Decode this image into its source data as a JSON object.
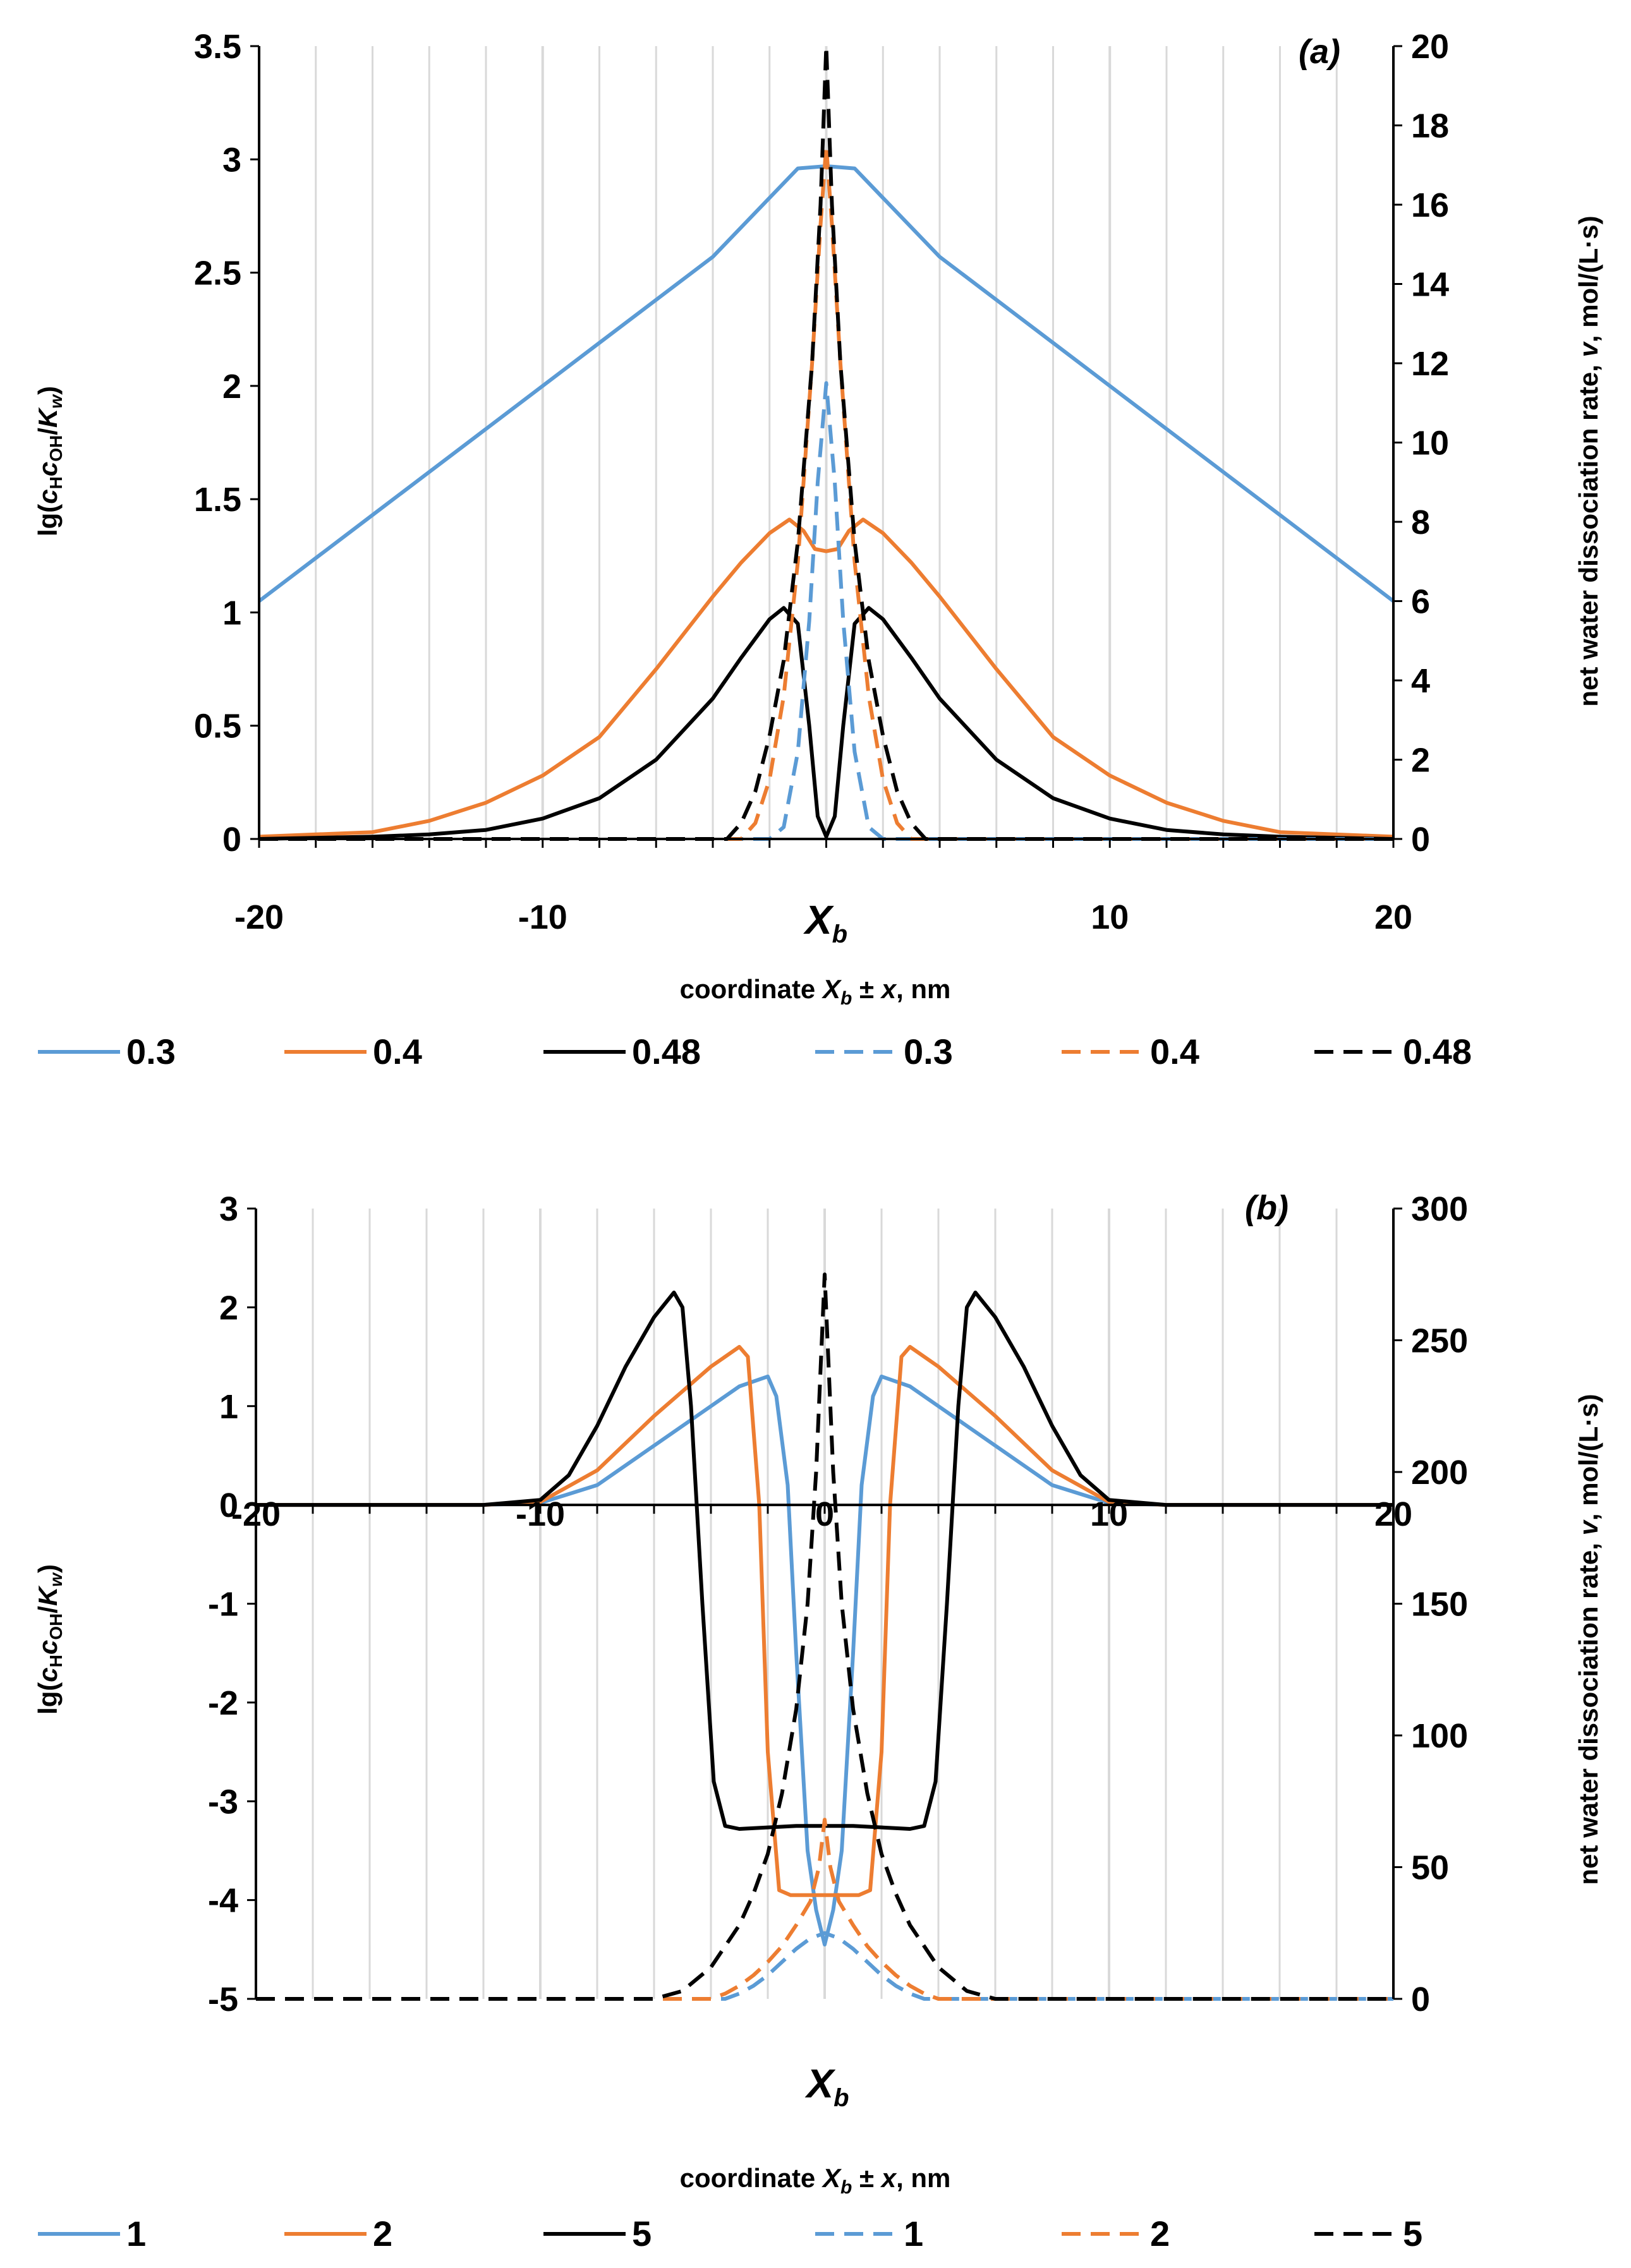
{
  "colors": {
    "s03": "#5B9BD5",
    "s04": "#ED7D31",
    "s048": "#000000",
    "grid": "#D9D9D9"
  },
  "chart_data": [
    {
      "panel": "(a)",
      "type": "line",
      "xlabel": "coordinate X_b ± x, nm",
      "ylabel": "lg(c_H c_OH/K_w)",
      "y2label": "net water dissociation rate, v, mol/(L·s)",
      "xlim": [
        -20,
        20
      ],
      "ylim": [
        0,
        3.5
      ],
      "y2lim": [
        0,
        20
      ],
      "xticks": [
        "-20",
        "-10",
        "X_b",
        "10",
        "20"
      ],
      "yticks": [
        "0",
        "0.5",
        "1",
        "1.5",
        "2",
        "2.5",
        "3",
        "3.5"
      ],
      "y2ticks": [
        "0",
        "2",
        "4",
        "6",
        "8",
        "10",
        "12",
        "14",
        "16",
        "18",
        "20"
      ],
      "legend": [
        "0.3",
        "0.4",
        "0.48",
        "0.3",
        "0.4",
        "0.48"
      ],
      "series": [
        {
          "name": "0.3",
          "axis": "left",
          "style": "solid",
          "color": "#5B9BD5",
          "x": [
            -20,
            -16,
            -12,
            -8,
            -4,
            -1,
            0,
            1,
            4,
            8,
            12,
            16,
            20
          ],
          "y": [
            1.05,
            1.43,
            1.81,
            2.19,
            2.57,
            2.96,
            2.97,
            2.96,
            2.57,
            2.19,
            1.81,
            1.43,
            1.05
          ]
        },
        {
          "name": "0.4",
          "axis": "left",
          "style": "solid",
          "color": "#ED7D31",
          "x": [
            -20,
            -16,
            -14,
            -12,
            -10,
            -8,
            -6,
            -4,
            -3,
            -2,
            -1.3,
            -0.8,
            -0.4,
            0,
            0.4,
            0.8,
            1.3,
            2,
            3,
            4,
            6,
            8,
            10,
            12,
            14,
            16,
            20
          ],
          "y": [
            0.01,
            0.03,
            0.08,
            0.16,
            0.28,
            0.45,
            0.75,
            1.07,
            1.22,
            1.35,
            1.41,
            1.36,
            1.28,
            1.27,
            1.28,
            1.36,
            1.41,
            1.35,
            1.22,
            1.07,
            0.75,
            0.45,
            0.28,
            0.16,
            0.08,
            0.03,
            0.01
          ]
        },
        {
          "name": "0.48",
          "axis": "left",
          "style": "solid",
          "color": "#000000",
          "x": [
            -20,
            -16,
            -14,
            -12,
            -10,
            -8,
            -6,
            -4,
            -3,
            -2,
            -1.5,
            -1,
            -0.6,
            -0.3,
            0,
            0.3,
            0.6,
            1,
            1.5,
            2,
            3,
            4,
            6,
            8,
            10,
            12,
            14,
            16,
            20
          ],
          "y": [
            0.0,
            0.01,
            0.02,
            0.04,
            0.09,
            0.18,
            0.35,
            0.62,
            0.8,
            0.97,
            1.02,
            0.95,
            0.5,
            0.1,
            0.01,
            0.1,
            0.5,
            0.95,
            1.02,
            0.97,
            0.8,
            0.62,
            0.35,
            0.18,
            0.09,
            0.04,
            0.02,
            0.01,
            0.0
          ]
        },
        {
          "name": "0.3",
          "axis": "right",
          "style": "dashed",
          "color": "#5B9BD5",
          "x": [
            -20,
            -2,
            -1.5,
            -1,
            -0.6,
            -0.3,
            0,
            0.3,
            0.6,
            1,
            1.5,
            2,
            20
          ],
          "y": [
            0,
            0,
            0.3,
            2.2,
            5.5,
            9.0,
            11.5,
            9.0,
            5.5,
            2.2,
            0.3,
            0,
            0
          ]
        },
        {
          "name": "0.4",
          "axis": "right",
          "style": "dashed",
          "color": "#ED7D31",
          "x": [
            -20,
            -3,
            -2.5,
            -2,
            -1.5,
            -1,
            -0.5,
            -0.2,
            0,
            0.2,
            0.5,
            1,
            1.5,
            2,
            2.5,
            3,
            20
          ],
          "y": [
            0,
            0,
            0.4,
            1.5,
            3.6,
            7.0,
            12.0,
            15.5,
            17.5,
            15.5,
            12.0,
            7.0,
            3.6,
            1.5,
            0.4,
            0,
            0
          ]
        },
        {
          "name": "0.48",
          "axis": "right",
          "style": "dashed",
          "color": "#000000",
          "x": [
            -20,
            -3.5,
            -3,
            -2.5,
            -2,
            -1.5,
            -1,
            -0.5,
            -0.2,
            0,
            0.2,
            0.5,
            1,
            1.5,
            2,
            2.5,
            3,
            3.5,
            20
          ],
          "y": [
            0,
            0,
            0.4,
            1.2,
            2.6,
            4.5,
            7.5,
            12.0,
            16.0,
            20.0,
            16.0,
            12.0,
            7.5,
            4.5,
            2.6,
            1.2,
            0.4,
            0,
            0
          ]
        }
      ]
    },
    {
      "panel": "(b)",
      "type": "line",
      "xlabel": "coordinate X_b ± x, nm",
      "ylabel": "lg(c_H c_OH/K_w)",
      "y2label": "net water dissociation rate, v, mol/(L·s)",
      "xlim": [
        -20,
        20
      ],
      "ylim": [
        -5,
        3
      ],
      "y2lim": [
        0,
        300
      ],
      "xticks": [
        "-20",
        "-10",
        "0",
        "10",
        "20"
      ],
      "xmark": "X_b",
      "yticks": [
        "-5",
        "-4",
        "-3",
        "-2",
        "-1",
        "0",
        "1",
        "2",
        "3"
      ],
      "y2ticks": [
        "0",
        "50",
        "100",
        "150",
        "200",
        "250",
        "300"
      ],
      "legend": [
        "1",
        "2",
        "5",
        "1",
        "2",
        "5"
      ],
      "series": [
        {
          "name": "1",
          "axis": "left",
          "style": "solid",
          "color": "#5B9BD5",
          "x": [
            -20,
            -12,
            -10,
            -8,
            -6,
            -4,
            -3,
            -2,
            -1.7,
            -1.3,
            -1,
            -0.6,
            -0.3,
            0,
            0.3,
            0.6,
            1,
            1.3,
            1.7,
            2,
            3,
            4,
            6,
            8,
            10,
            12,
            20
          ],
          "y": [
            0,
            0,
            0.02,
            0.2,
            0.6,
            1.0,
            1.2,
            1.3,
            1.1,
            0.2,
            -1.5,
            -3.5,
            -4.1,
            -4.45,
            -4.1,
            -3.5,
            -1.5,
            0.2,
            1.1,
            1.3,
            1.2,
            1.0,
            0.6,
            0.2,
            0.02,
            0,
            0
          ]
        },
        {
          "name": "2",
          "axis": "left",
          "style": "solid",
          "color": "#ED7D31",
          "x": [
            -20,
            -12,
            -10,
            -8,
            -6,
            -4,
            -3,
            -2.7,
            -2.3,
            -2,
            -1.6,
            -1.2,
            -0.6,
            0,
            0.6,
            1.2,
            1.6,
            2,
            2.3,
            2.7,
            3,
            4,
            6,
            8,
            10,
            12,
            20
          ],
          "y": [
            0,
            0,
            0.03,
            0.35,
            0.9,
            1.4,
            1.6,
            1.5,
            0.0,
            -2.5,
            -3.9,
            -3.95,
            -3.95,
            -3.95,
            -3.95,
            -3.95,
            -3.9,
            -2.5,
            0.0,
            1.5,
            1.6,
            1.4,
            0.9,
            0.35,
            0.03,
            0,
            0
          ]
        },
        {
          "name": "5",
          "axis": "left",
          "style": "solid",
          "color": "#000000",
          "x": [
            -20,
            -12,
            -10,
            -9,
            -8,
            -7,
            -6,
            -5.3,
            -5,
            -4.7,
            -4.3,
            -3.9,
            -3.5,
            -3,
            -1,
            0,
            1,
            3,
            3.5,
            3.9,
            4.3,
            4.7,
            5,
            5.3,
            6,
            7,
            8,
            9,
            10,
            12,
            20
          ],
          "y": [
            0,
            0,
            0.05,
            0.3,
            0.8,
            1.4,
            1.9,
            2.15,
            2.0,
            1.0,
            -1.0,
            -2.8,
            -3.25,
            -3.28,
            -3.25,
            -3.25,
            -3.25,
            -3.28,
            -3.25,
            -2.8,
            -1.0,
            1.0,
            2.0,
            2.15,
            1.9,
            1.4,
            0.8,
            0.3,
            0.05,
            0,
            0
          ]
        },
        {
          "name": "1",
          "axis": "right",
          "style": "dashed",
          "color": "#5B9BD5",
          "x": [
            -20,
            -3.5,
            -3,
            -2.5,
            -2,
            -1.5,
            -1,
            -0.5,
            0,
            0.5,
            1,
            1.5,
            2,
            2.5,
            3,
            3.5,
            20
          ],
          "y": [
            0,
            0,
            2,
            5,
            9,
            14,
            19,
            23,
            25,
            23,
            19,
            14,
            9,
            5,
            2,
            0,
            0
          ]
        },
        {
          "name": "2",
          "axis": "right",
          "style": "dashed",
          "color": "#ED7D31",
          "x": [
            -20,
            -4,
            -3.5,
            -3,
            -2.5,
            -2,
            -1.5,
            -1,
            -0.5,
            -0.2,
            0,
            0.2,
            0.5,
            1,
            1.5,
            2,
            2.5,
            3,
            3.5,
            4,
            20
          ],
          "y": [
            0,
            0,
            2,
            5,
            9,
            14,
            20,
            28,
            37,
            50,
            68,
            50,
            37,
            28,
            20,
            14,
            9,
            5,
            2,
            0,
            0
          ]
        },
        {
          "name": "5",
          "axis": "right",
          "style": "dashed",
          "color": "#000000",
          "x": [
            -20,
            -6,
            -5,
            -4,
            -3,
            -2.5,
            -2,
            -1.5,
            -1,
            -0.6,
            -0.3,
            0,
            0.3,
            0.6,
            1,
            1.5,
            2,
            2.5,
            3,
            4,
            5,
            6,
            20
          ],
          "y": [
            0,
            0,
            3,
            12,
            28,
            40,
            55,
            78,
            110,
            150,
            200,
            275,
            200,
            150,
            110,
            78,
            55,
            40,
            28,
            12,
            3,
            0,
            0
          ]
        }
      ]
    }
  ]
}
